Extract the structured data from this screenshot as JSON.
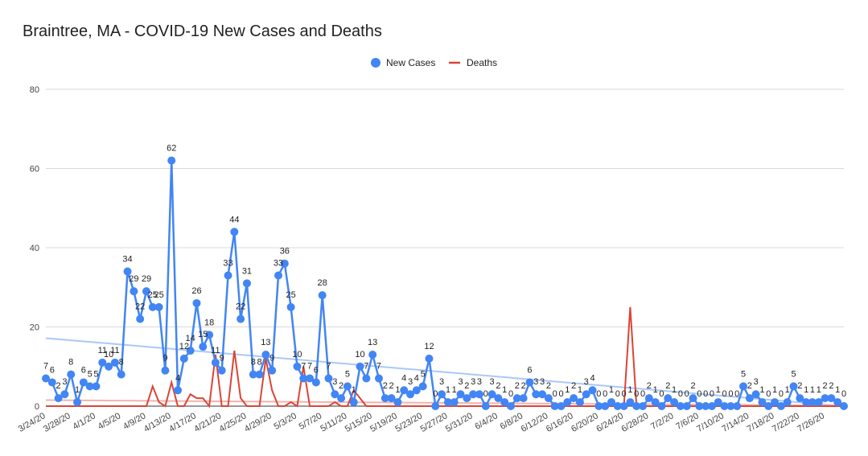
{
  "chart_data": {
    "type": "line",
    "title": "Braintree, MA - COVID-19 New Cases and Deaths",
    "xlabel": "",
    "ylabel": "",
    "ylim": [
      0,
      80
    ],
    "yticks": [
      0,
      20,
      40,
      60,
      80
    ],
    "grid": true,
    "legend_position": "top",
    "x_tick_labels": [
      "3/24/20",
      "3/28/20",
      "4/1/20",
      "4/5/20",
      "4/9/20",
      "4/13/20",
      "4/17/20",
      "4/21/20",
      "4/25/20",
      "4/29/20",
      "5/3/20",
      "5/7/20",
      "5/11/20",
      "5/15/20",
      "5/19/20",
      "5/23/20",
      "5/27/20",
      "5/31/20",
      "6/4/20",
      "6/8/20",
      "6/12/20",
      "6/16/20",
      "6/20/20",
      "6/24/20",
      "6/28/20",
      "7/2/20",
      "7/6/20",
      "7/10/20",
      "7/14/20",
      "7/18/20",
      "7/22/20",
      "7/26/20"
    ],
    "start_date": "3/24/20",
    "series": [
      {
        "name": "New Cases",
        "color": "#4285f4",
        "values": [
          7,
          6,
          2,
          3,
          8,
          1,
          6,
          5,
          5,
          11,
          10,
          11,
          8,
          34,
          29,
          22,
          29,
          25,
          25,
          9,
          62,
          4,
          12,
          14,
          26,
          15,
          18,
          11,
          9,
          33,
          44,
          22,
          31,
          8,
          8,
          13,
          9,
          33,
          36,
          25,
          10,
          7,
          7,
          6,
          28,
          7,
          3,
          2,
          5,
          1,
          10,
          7,
          13,
          7,
          2,
          2,
          1,
          4,
          3,
          4,
          5,
          12,
          0,
          3,
          1,
          1,
          3,
          2,
          3,
          3,
          0,
          3,
          2,
          1,
          0,
          2,
          2,
          6,
          3,
          3,
          2,
          0,
          0,
          1,
          2,
          1,
          3,
          4,
          0,
          0,
          1,
          0,
          0,
          1,
          0,
          0,
          2,
          1,
          0,
          2,
          1,
          0,
          0,
          2,
          0,
          0,
          0,
          1,
          0,
          0,
          0,
          5,
          2,
          3,
          1,
          0,
          1,
          0,
          1,
          5,
          2,
          1,
          1,
          1,
          2,
          2,
          1,
          0
        ]
      },
      {
        "name": "Deaths",
        "color": "#db4437",
        "values": [
          0,
          0,
          0,
          0,
          0,
          0,
          0,
          0,
          0,
          0,
          0,
          0,
          0,
          0,
          0,
          0,
          0,
          5,
          1,
          0,
          6,
          0,
          0,
          3,
          2,
          2,
          0,
          13,
          0,
          0,
          14,
          2,
          0,
          0,
          0,
          12,
          4,
          0,
          0,
          1,
          0,
          10,
          0,
          0,
          0,
          0,
          1,
          0,
          0,
          4,
          2,
          0,
          0,
          0,
          0,
          0,
          0,
          0,
          0,
          0,
          0,
          0,
          0,
          0,
          0,
          0,
          0,
          0,
          0,
          0,
          0,
          0,
          0,
          0,
          0,
          0,
          0,
          0,
          0,
          0,
          0,
          0,
          0,
          0,
          0,
          0,
          0,
          0,
          0,
          0,
          0,
          0,
          0,
          25,
          0,
          0,
          0,
          0,
          0,
          0,
          0,
          0,
          0,
          0,
          0,
          0,
          0,
          0,
          0,
          0,
          0,
          0,
          0,
          0,
          0,
          0,
          0,
          0,
          0,
          0,
          0,
          0,
          0,
          0,
          0,
          0,
          0,
          0
        ]
      }
    ]
  }
}
